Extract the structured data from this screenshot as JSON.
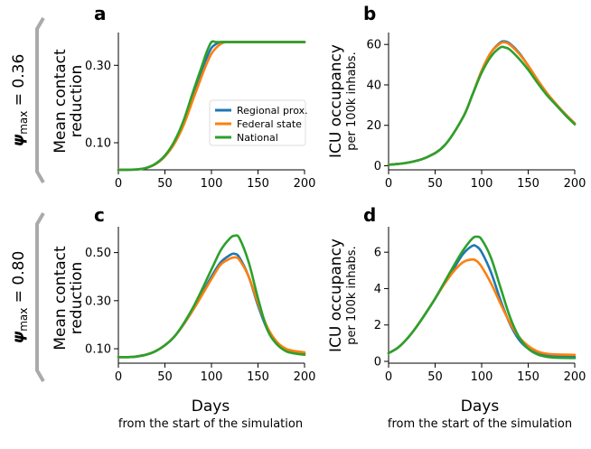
{
  "colors": {
    "regional": "#1f77b4",
    "federal": "#ff7f0e",
    "national": "#2ca02c",
    "bracket": "#aaaaaa"
  },
  "rows": [
    {
      "label_prefix": "ψ",
      "label_sub": "max",
      "label_suffix": " = 0.36"
    },
    {
      "label_prefix": "ψ",
      "label_sub": "max",
      "label_suffix": " = 0.80"
    }
  ],
  "labels": {
    "contact_line1": "Mean contact",
    "contact_line2": "reduction",
    "icu_line1": "ICU occupancy",
    "icu_line2": "per 100k inhabs.",
    "x_main": "Days",
    "x_sub": "from the start of the simulation"
  },
  "legend": [
    "Regional prox.",
    "Federal state",
    "National"
  ],
  "chart_data": [
    {
      "panel": "a",
      "type": "line",
      "xlim": [
        0,
        200
      ],
      "ylim": [
        0.03,
        0.38
      ],
      "xticks": [
        0,
        50,
        100,
        150,
        200
      ],
      "yticks": [
        0.1,
        0.3
      ],
      "ytick_labels": [
        "0.10",
        "0.30"
      ],
      "legend": "center-right",
      "series": [
        {
          "name": "Regional prox.",
          "color": "#1f77b4",
          "x": [
            0,
            20,
            30,
            40,
            50,
            60,
            70,
            80,
            90,
            95,
            100,
            105,
            110,
            120,
            150,
            200
          ],
          "y": [
            0.03,
            0.031,
            0.035,
            0.045,
            0.065,
            0.1,
            0.15,
            0.22,
            0.29,
            0.32,
            0.345,
            0.355,
            0.36,
            0.36,
            0.36,
            0.36
          ]
        },
        {
          "name": "Federal state",
          "color": "#ff7f0e",
          "x": [
            0,
            20,
            30,
            40,
            50,
            60,
            70,
            80,
            90,
            95,
            100,
            105,
            110,
            115,
            120,
            150,
            200
          ],
          "y": [
            0.03,
            0.031,
            0.035,
            0.045,
            0.065,
            0.097,
            0.145,
            0.21,
            0.275,
            0.305,
            0.33,
            0.345,
            0.355,
            0.36,
            0.36,
            0.36,
            0.36
          ]
        },
        {
          "name": "National",
          "color": "#2ca02c",
          "x": [
            0,
            20,
            30,
            40,
            50,
            60,
            70,
            80,
            90,
            95,
            100,
            105,
            110,
            150,
            200
          ],
          "y": [
            0.03,
            0.031,
            0.035,
            0.046,
            0.067,
            0.103,
            0.157,
            0.23,
            0.3,
            0.335,
            0.36,
            0.36,
            0.36,
            0.36,
            0.36
          ]
        }
      ]
    },
    {
      "panel": "b",
      "type": "line",
      "xlim": [
        0,
        200
      ],
      "ylim": [
        -2,
        65
      ],
      "xticks": [
        0,
        50,
        100,
        150,
        200
      ],
      "yticks": [
        0,
        20,
        40,
        60
      ],
      "ytick_labels": [
        "0",
        "20",
        "40",
        "60"
      ],
      "series": [
        {
          "name": "Regional prox.",
          "color": "#1f77b4",
          "x": [
            0,
            20,
            40,
            60,
            80,
            90,
            100,
            110,
            120,
            125,
            130,
            140,
            150,
            160,
            170,
            180,
            190,
            200
          ],
          "y": [
            0.5,
            1.5,
            4,
            10,
            24,
            35,
            47,
            56,
            61,
            61.5,
            60.5,
            56,
            49.5,
            42.5,
            36,
            30.5,
            25.5,
            21
          ]
        },
        {
          "name": "Federal state",
          "color": "#ff7f0e",
          "x": [
            0,
            20,
            40,
            60,
            80,
            90,
            100,
            110,
            120,
            125,
            130,
            140,
            150,
            160,
            170,
            180,
            190,
            200
          ],
          "y": [
            0.5,
            1.5,
            4,
            10,
            24,
            35,
            47,
            56,
            60.5,
            61,
            60,
            55.5,
            49.5,
            42.5,
            36,
            30.5,
            25.5,
            21
          ]
        },
        {
          "name": "National",
          "color": "#2ca02c",
          "x": [
            0,
            20,
            40,
            60,
            80,
            90,
            100,
            110,
            120,
            125,
            130,
            140,
            150,
            160,
            170,
            180,
            190,
            200
          ],
          "y": [
            0.5,
            1.5,
            4,
            10,
            24,
            35,
            46,
            54,
            58.5,
            58.5,
            57.5,
            53,
            47.5,
            41,
            35,
            30,
            25,
            20.5
          ]
        }
      ]
    },
    {
      "panel": "c",
      "type": "line",
      "xlim": [
        0,
        200
      ],
      "ylim": [
        0.04,
        0.6
      ],
      "xticks": [
        0,
        50,
        100,
        150,
        200
      ],
      "yticks": [
        0.1,
        0.3,
        0.5
      ],
      "ytick_labels": [
        "0.10",
        "0.30",
        "0.50"
      ],
      "series": [
        {
          "name": "Regional prox.",
          "color": "#1f77b4",
          "x": [
            0,
            20,
            40,
            60,
            80,
            100,
            110,
            120,
            125,
            130,
            140,
            150,
            160,
            170,
            180,
            190,
            200
          ],
          "y": [
            0.065,
            0.068,
            0.09,
            0.15,
            0.26,
            0.4,
            0.46,
            0.49,
            0.495,
            0.48,
            0.4,
            0.28,
            0.18,
            0.12,
            0.095,
            0.085,
            0.08
          ]
        },
        {
          "name": "Federal state",
          "color": "#ff7f0e",
          "x": [
            0,
            20,
            40,
            60,
            80,
            100,
            110,
            120,
            125,
            130,
            140,
            150,
            160,
            170,
            180,
            190,
            200
          ],
          "y": [
            0.065,
            0.068,
            0.09,
            0.15,
            0.26,
            0.39,
            0.45,
            0.475,
            0.48,
            0.47,
            0.4,
            0.29,
            0.19,
            0.13,
            0.1,
            0.09,
            0.085
          ]
        },
        {
          "name": "National",
          "color": "#2ca02c",
          "x": [
            0,
            20,
            40,
            60,
            80,
            100,
            110,
            120,
            125,
            130,
            140,
            150,
            160,
            170,
            180,
            190,
            200
          ],
          "y": [
            0.065,
            0.068,
            0.09,
            0.15,
            0.27,
            0.43,
            0.51,
            0.56,
            0.57,
            0.56,
            0.46,
            0.31,
            0.18,
            0.12,
            0.09,
            0.08,
            0.075
          ]
        }
      ]
    },
    {
      "panel": "d",
      "type": "line",
      "xlim": [
        0,
        200
      ],
      "ylim": [
        -0.1,
        7.3
      ],
      "xticks": [
        0,
        50,
        100,
        150,
        200
      ],
      "yticks": [
        0,
        2,
        4,
        6
      ],
      "ytick_labels": [
        "0",
        "2",
        "4",
        "6"
      ],
      "series": [
        {
          "name": "Regional prox.",
          "color": "#1f77b4",
          "x": [
            0,
            10,
            20,
            30,
            40,
            50,
            60,
            70,
            80,
            90,
            95,
            100,
            110,
            120,
            130,
            140,
            150,
            160,
            170,
            180,
            200
          ],
          "y": [
            0.45,
            0.75,
            1.25,
            1.9,
            2.65,
            3.45,
            4.3,
            5.1,
            5.9,
            6.35,
            6.3,
            6.0,
            4.9,
            3.4,
            2.1,
            1.2,
            0.7,
            0.45,
            0.33,
            0.28,
            0.25
          ]
        },
        {
          "name": "Federal state",
          "color": "#ff7f0e",
          "x": [
            0,
            10,
            20,
            30,
            40,
            50,
            60,
            70,
            80,
            90,
            95,
            100,
            110,
            120,
            130,
            140,
            150,
            160,
            170,
            180,
            200
          ],
          "y": [
            0.45,
            0.75,
            1.25,
            1.9,
            2.65,
            3.45,
            4.25,
            4.95,
            5.45,
            5.6,
            5.5,
            5.2,
            4.3,
            3.2,
            2.15,
            1.35,
            0.85,
            0.55,
            0.42,
            0.38,
            0.36
          ]
        },
        {
          "name": "National",
          "color": "#2ca02c",
          "x": [
            0,
            10,
            20,
            30,
            40,
            50,
            60,
            70,
            80,
            90,
            95,
            100,
            110,
            120,
            130,
            140,
            150,
            160,
            170,
            180,
            200
          ],
          "y": [
            0.45,
            0.75,
            1.25,
            1.9,
            2.65,
            3.45,
            4.35,
            5.25,
            6.1,
            6.75,
            6.85,
            6.7,
            5.7,
            4.1,
            2.5,
            1.35,
            0.7,
            0.38,
            0.25,
            0.2,
            0.18
          ]
        }
      ]
    }
  ]
}
